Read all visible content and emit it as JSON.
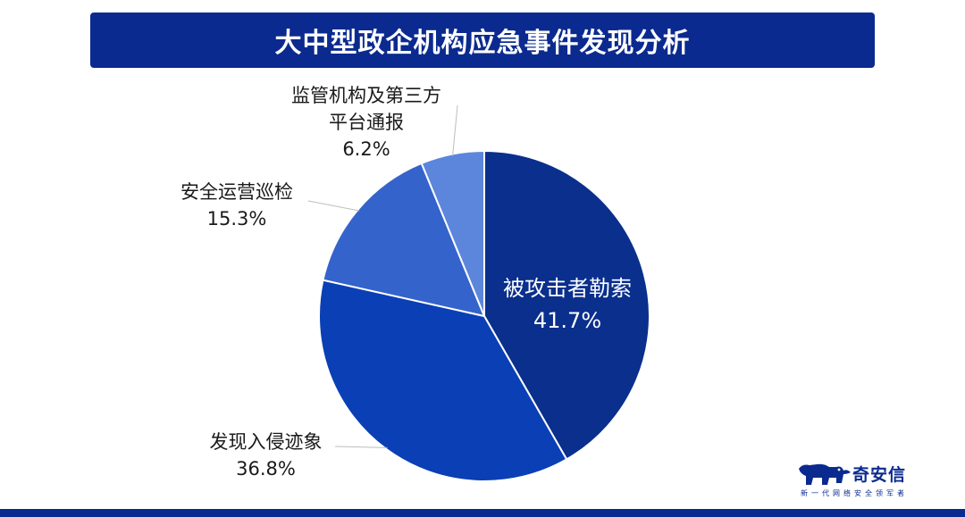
{
  "header": {
    "title": "大中型政企机构应急事件发现分析"
  },
  "chart_data": {
    "type": "pie",
    "title": "大中型政企机构应急事件发现分析",
    "slices": [
      {
        "label": "被攻击者勒索",
        "value": 41.7,
        "display": "41.7%",
        "color": "#0a2f8c"
      },
      {
        "label": "发现入侵迹象",
        "value": 36.8,
        "display": "36.8%",
        "color": "#0a3fb5"
      },
      {
        "label": "安全运营巡检",
        "value": 15.3,
        "display": "15.3%",
        "color": "#3563cc"
      },
      {
        "label": "监管机构及第三方平台通报",
        "value": 6.2,
        "display": "6.2%",
        "color": "#5b86db"
      }
    ]
  },
  "labels": {
    "slice0": {
      "line1": "被攻击者勒索",
      "line2": "41.7%"
    },
    "slice1": {
      "line1": "发现入侵迹象",
      "line2": "36.8%"
    },
    "slice2": {
      "line1": "安全运营巡检",
      "line2": "15.3%"
    },
    "slice3": {
      "line1": "监管机构及第三方",
      "line2": "平台通报",
      "line3": "6.2%"
    }
  },
  "logo": {
    "name": "奇安信",
    "slogan": "新一代网络安全领军者",
    "icon": "qianxin-bear-icon",
    "color": "#0b2a8f"
  }
}
